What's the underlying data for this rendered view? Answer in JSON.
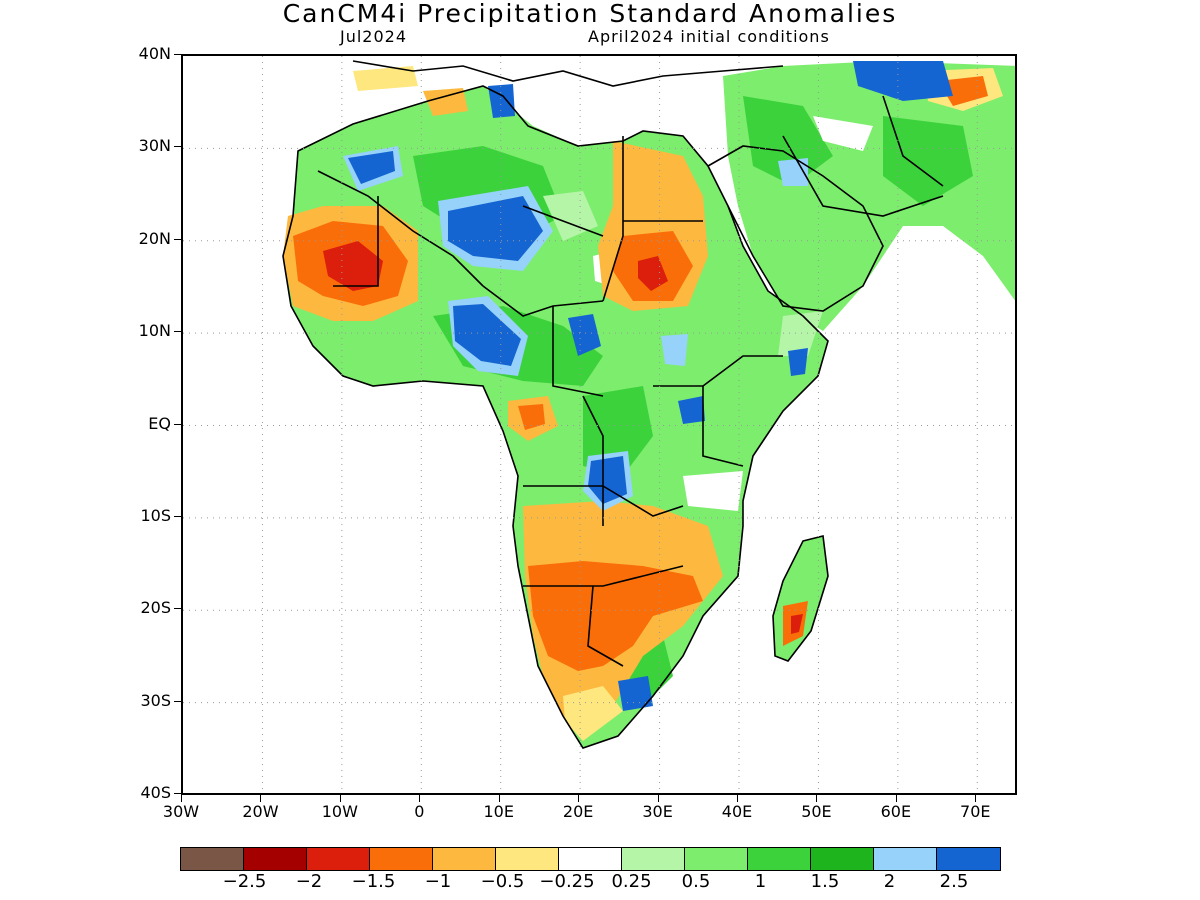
{
  "title": "CanCM4i Precipitation Standard Anomalies",
  "subtitle_left": "Jul2024",
  "subtitle_right": "April2024 initial conditions",
  "map": {
    "lon_range": [
      -30,
      75
    ],
    "lat_range": [
      -40,
      40
    ],
    "lat_labels": [
      "40N",
      "30N",
      "20N",
      "10N",
      "EQ",
      "10S",
      "20S",
      "30S",
      "40S"
    ],
    "lon_labels": [
      "30W",
      "20W",
      "10W",
      "0",
      "10E",
      "20E",
      "30E",
      "40E",
      "50E",
      "60E",
      "70E"
    ],
    "land_background": "#ffffff",
    "coastline_color": "#000000"
  },
  "colorbar": {
    "colors": [
      "#7a5646",
      "#a50000",
      "#dc1e0c",
      "#fa6e0a",
      "#fdb93f",
      "#fde77e",
      "#ffffff",
      "#b5f5a8",
      "#7ded6d",
      "#3cd23c",
      "#1eb41e",
      "#96d2fa",
      "#1464d2"
    ],
    "labels": [
      "-2.5",
      "-2",
      "-1.5",
      "-1",
      "-0.5",
      "-0.25",
      "0.25",
      "0.5",
      "1",
      "1.5",
      "2",
      "2.5"
    ]
  }
}
